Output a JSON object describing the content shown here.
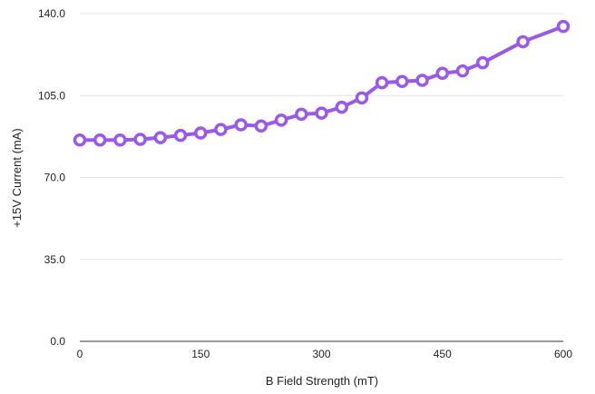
{
  "chart_data": {
    "type": "line",
    "title": "",
    "xlabel": "B Field Strength (mT)",
    "ylabel": "+15V Current (mA)",
    "xlim": [
      0,
      600
    ],
    "ylim": [
      0,
      140
    ],
    "x_ticks": [
      "0",
      "150",
      "300",
      "450",
      "600"
    ],
    "x_tick_values": [
      0,
      150,
      300,
      450,
      600
    ],
    "y_ticks": [
      "0.0",
      "35.0",
      "70.0",
      "105.0",
      "140.0"
    ],
    "y_tick_values": [
      0,
      35,
      70,
      105,
      140
    ],
    "grid": "horizontal",
    "series": [
      {
        "color": "#9b59e8",
        "marker_fill": "#ffffff",
        "x": [
          0,
          25,
          50,
          75,
          100,
          125,
          150,
          175,
          200,
          225,
          250,
          275,
          300,
          325,
          350,
          375,
          400,
          425,
          450,
          475,
          500,
          550,
          600
        ],
        "y": [
          86.0,
          86.0,
          86.0,
          86.3,
          87.0,
          88.0,
          89.0,
          90.5,
          92.5,
          92.0,
          94.5,
          97.0,
          97.5,
          100.0,
          104.0,
          110.5,
          111.0,
          111.5,
          114.5,
          115.5,
          119.0,
          128.0,
          134.5
        ]
      }
    ]
  }
}
